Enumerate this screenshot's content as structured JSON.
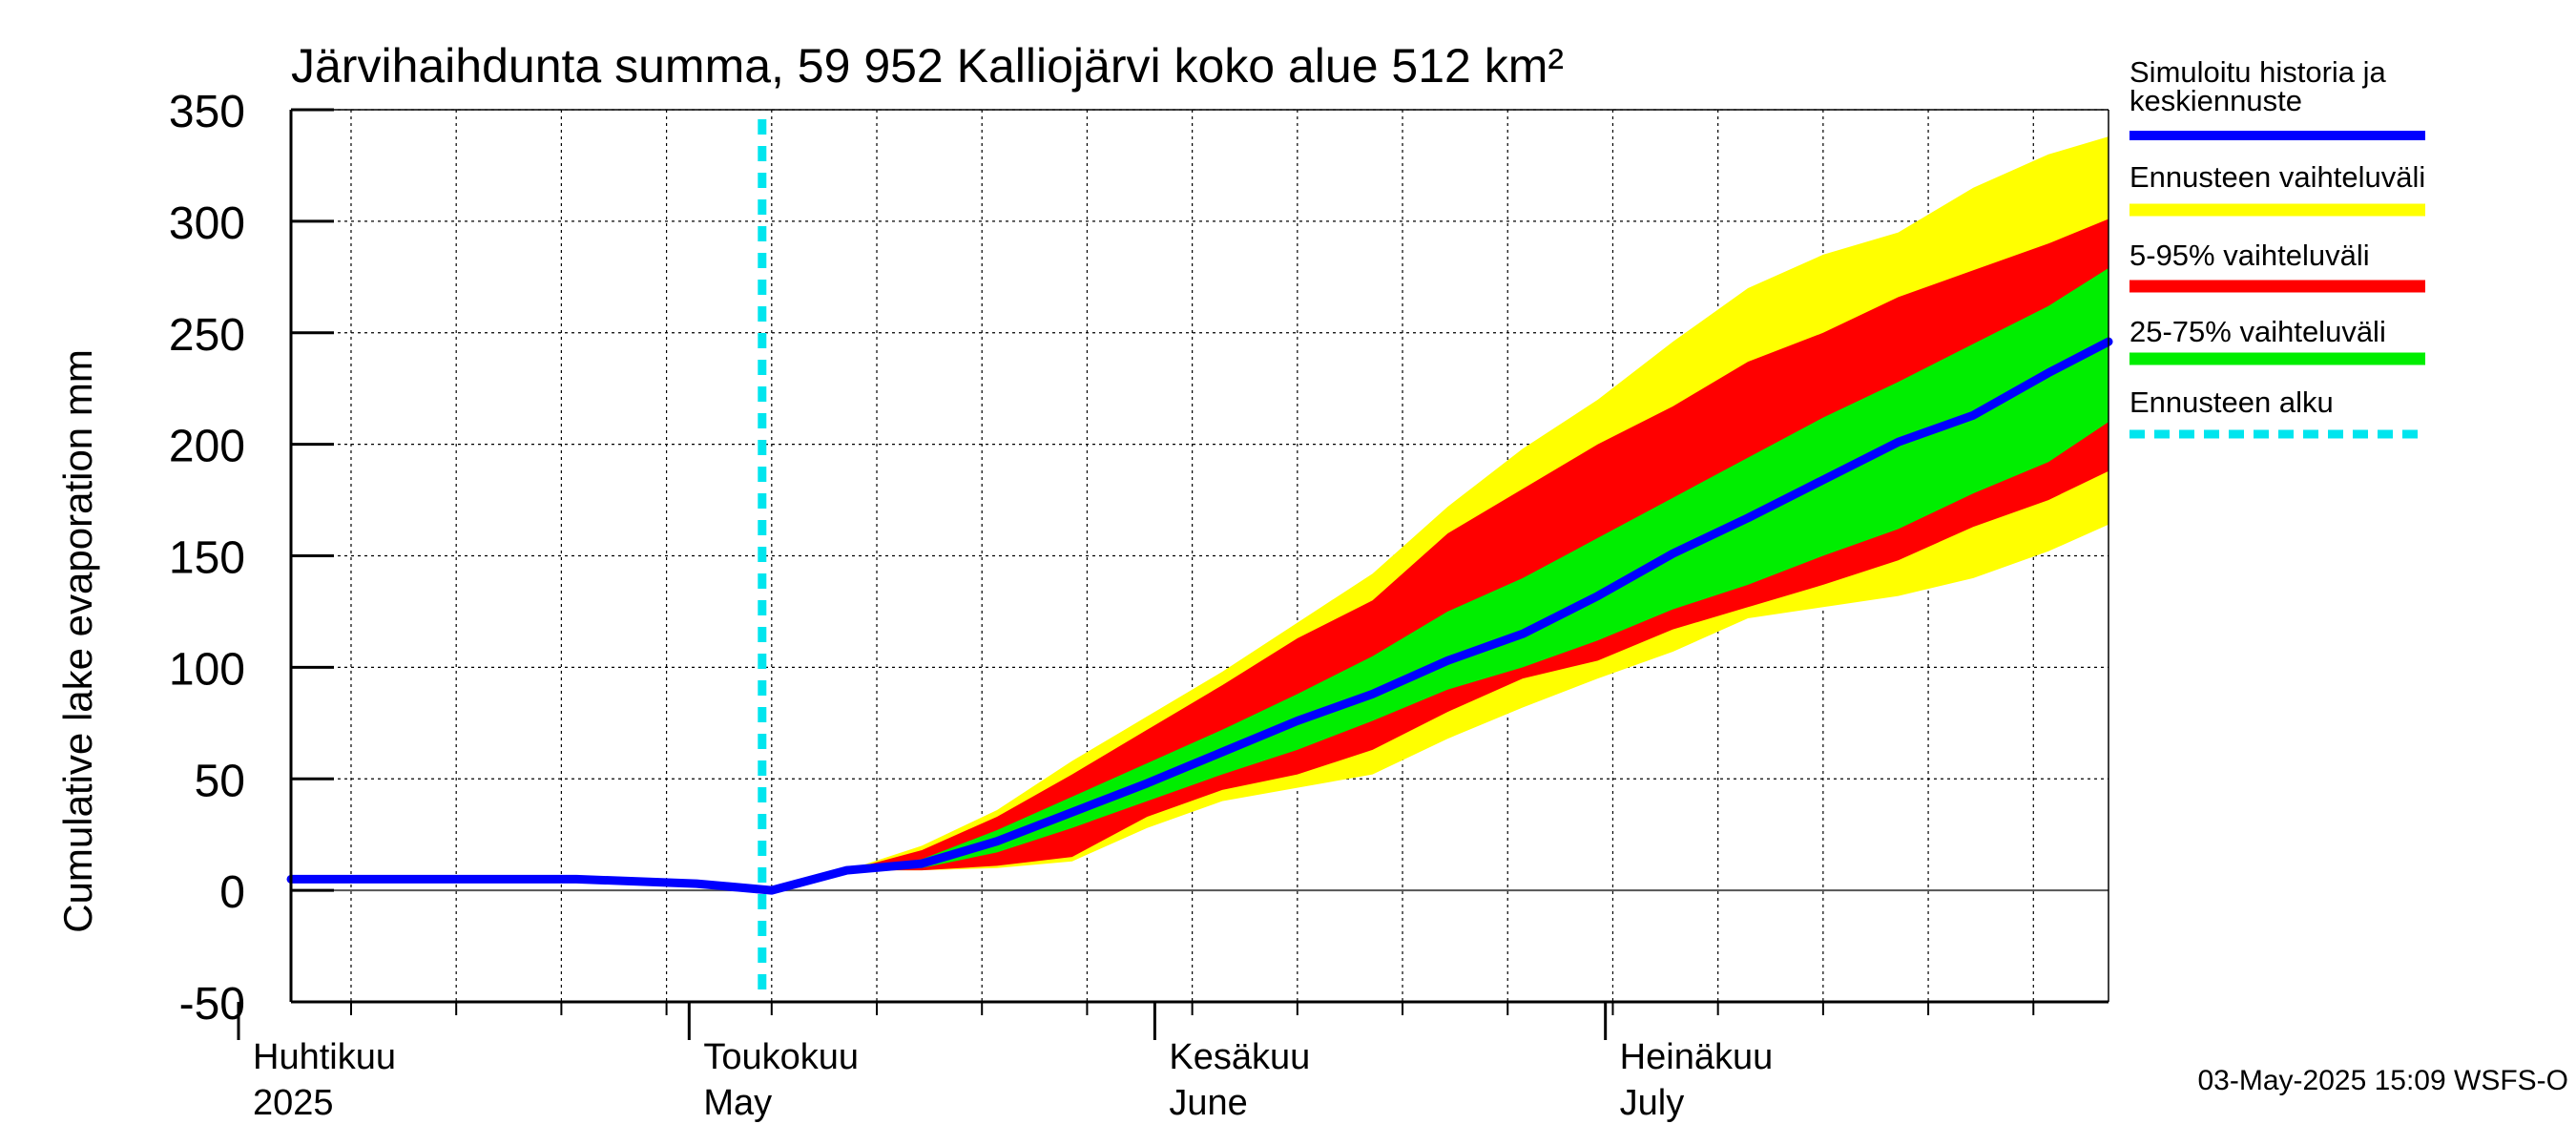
{
  "chart_data": {
    "type": "area",
    "title": "Järvihaihdunta summa, 59 952 Kalliojärvi koko alue 512 km²",
    "ylabel": "Cumulative lake evaporation   mm",
    "xlabel": "",
    "ylim": [
      -50,
      350
    ],
    "yticks": [
      -50,
      0,
      50,
      100,
      150,
      200,
      250,
      300,
      350
    ],
    "xlim": [
      "2025-04-01",
      "2025-07-31"
    ],
    "grid": true,
    "legend_position": "right",
    "x_tick_labels": [
      {
        "date": "2025-04-01",
        "fi": "Huhtikuu",
        "en": "2025"
      },
      {
        "date": "2025-05-01",
        "fi": "Toukokuu",
        "en": "May"
      },
      {
        "date": "2025-06-01",
        "fi": "Kesäkuu",
        "en": "June"
      },
      {
        "date": "2025-07-01",
        "fi": "Heinäkuu",
        "en": "July"
      }
    ],
    "forecast_start": "2025-05-03",
    "x": [
      "2025-04-01",
      "2025-04-10",
      "2025-04-20",
      "2025-04-28",
      "2025-05-03",
      "2025-05-08",
      "2025-05-13",
      "2025-05-18",
      "2025-05-23",
      "2025-05-28",
      "2025-06-02",
      "2025-06-07",
      "2025-06-12",
      "2025-06-17",
      "2025-06-22",
      "2025-06-27",
      "2025-07-02",
      "2025-07-07",
      "2025-07-12",
      "2025-07-17",
      "2025-07-22",
      "2025-07-27",
      "2025-07-31"
    ],
    "series": [
      {
        "name": "Simuloitu historia ja keskiennuste",
        "color": "#0000ff",
        "values": [
          5,
          5,
          5,
          3,
          0,
          9,
          12,
          22,
          35,
          48,
          62,
          76,
          88,
          103,
          115,
          132,
          151,
          167,
          184,
          201,
          213,
          232,
          246
        ]
      },
      {
        "name": "Ennusteen vaihteluväli",
        "color": "#ffff00",
        "lower": [
          null,
          null,
          null,
          null,
          0,
          9,
          9,
          10,
          13,
          28,
          40,
          46,
          52,
          68,
          82,
          95,
          107,
          122,
          127,
          132,
          140,
          152,
          164
        ],
        "upper": [
          null,
          null,
          null,
          null,
          0,
          9,
          20,
          36,
          58,
          78,
          98,
          120,
          142,
          172,
          198,
          220,
          246,
          270,
          285,
          295,
          315,
          330,
          338
        ]
      },
      {
        "name": "5-95% vaihteluväli",
        "color": "#ff0000",
        "lower": [
          null,
          null,
          null,
          null,
          0,
          9,
          9,
          11,
          15,
          33,
          45,
          52,
          63,
          80,
          95,
          103,
          117,
          127,
          137,
          148,
          163,
          175,
          188
        ],
        "upper": [
          null,
          null,
          null,
          null,
          0,
          9,
          18,
          33,
          52,
          72,
          92,
          113,
          130,
          160,
          180,
          200,
          217,
          237,
          250,
          266,
          278,
          290,
          301
        ]
      },
      {
        "name": "25-75% vaihteluväli",
        "color": "#00ee00",
        "lower": [
          null,
          null,
          null,
          null,
          0,
          9,
          10,
          17,
          28,
          40,
          52,
          63,
          76,
          90,
          100,
          112,
          126,
          137,
          150,
          162,
          178,
          192,
          210
        ],
        "upper": [
          null,
          null,
          null,
          null,
          0,
          9,
          14,
          27,
          42,
          57,
          72,
          88,
          105,
          125,
          140,
          158,
          176,
          194,
          212,
          228,
          245,
          262,
          279
        ]
      },
      {
        "name": "Ennusteen alku",
        "color": "#00e5ee",
        "style": "dashed"
      }
    ]
  },
  "footer": "03-May-2025 15:09 WSFS-O"
}
